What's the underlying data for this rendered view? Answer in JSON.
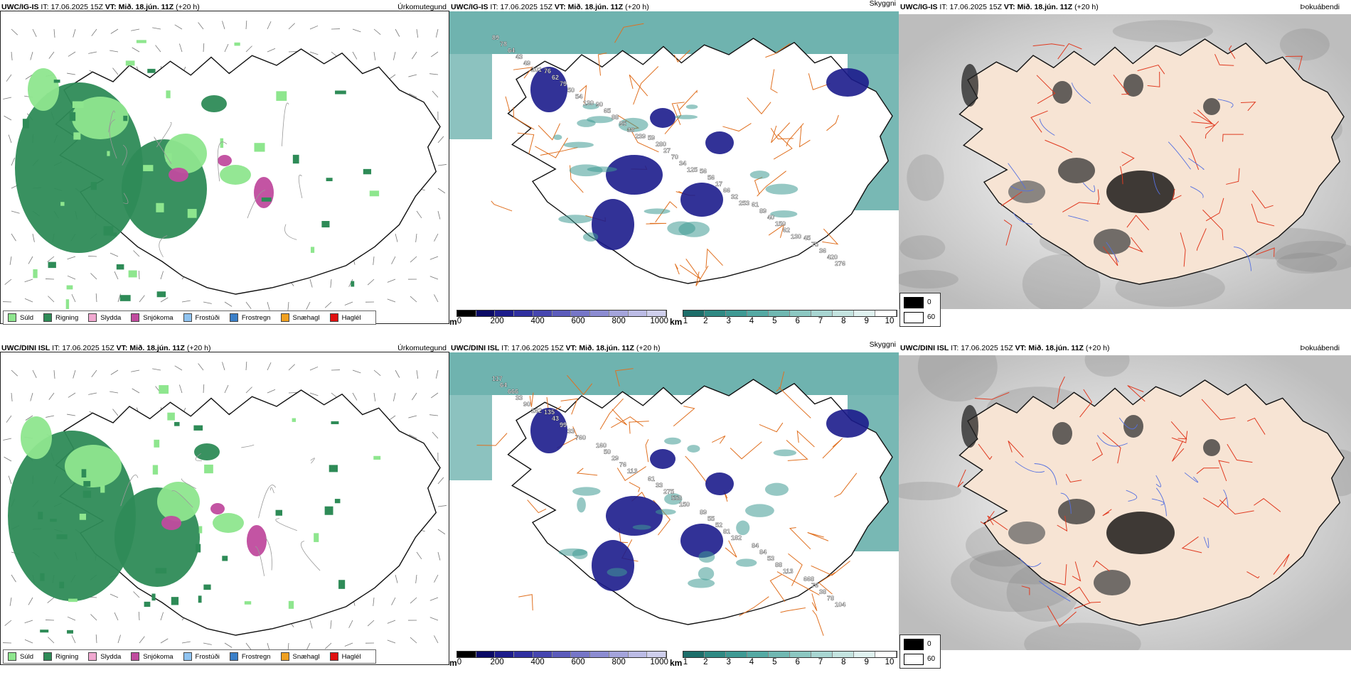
{
  "page": {
    "background": "#ffffff"
  },
  "common": {
    "it_label": "IT:",
    "it_value": "17.06.2025 15Z",
    "vt_label": "VT:",
    "vt_value": "Mið. 18.jún. 11Z",
    "lead": "(+20 h)"
  },
  "rows": [
    {
      "model": "UWC/IG-IS",
      "panels": [
        {
          "type": "precipitation",
          "title": "Úrkomutegund"
        },
        {
          "type": "cloud_ceiling",
          "title": "Skyggni",
          "labels": [
            "89",
            "76",
            "90",
            "59",
            "56",
            "61",
            "45",
            "78",
            "62",
            "65",
            "280",
            "56",
            "89",
            "75",
            "64",
            "79",
            "88",
            "27",
            "17",
            "40",
            "36",
            "43",
            "50",
            "95",
            "70",
            "66",
            "150",
            "420",
            "49",
            "54",
            "38",
            "34",
            "32",
            "62",
            "276",
            "201",
            "130",
            "239",
            "125",
            "253",
            "130"
          ]
        },
        {
          "type": "fog",
          "title": "Þokuábendi"
        }
      ]
    },
    {
      "model": "UWC/DINI ISL",
      "panels": [
        {
          "type": "precipitation",
          "title": "Úrkomutegund"
        },
        {
          "type": "cloud_ceiling",
          "title": "Skyggni",
          "labels": [
            "117",
            "135",
            "160",
            "61",
            "89",
            "84",
            "668",
            "64",
            "43",
            "50",
            "33",
            "55",
            "84",
            "76",
            "666",
            "99",
            "29",
            "275",
            "52",
            "53",
            "38",
            "33",
            "33",
            "76",
            "558",
            "81",
            "88",
            "78",
            "90",
            "760",
            "113",
            "150",
            "182",
            "113",
            "104",
            "162"
          ]
        },
        {
          "type": "fog",
          "title": "Þokuábendi"
        }
      ]
    }
  ],
  "precip_legend": [
    {
      "label": "Súld",
      "color": "#8ee68e"
    },
    {
      "label": "Rigning",
      "color": "#2e8b57"
    },
    {
      "label": "Slydda",
      "color": "#f0a8d0"
    },
    {
      "label": "Snjókoma",
      "color": "#c04b9e"
    },
    {
      "label": "Frostúði",
      "color": "#8fc3f0"
    },
    {
      "label": "Frostregn",
      "color": "#3a7fc8"
    },
    {
      "label": "Snæhagl",
      "color": "#f0a020"
    },
    {
      "label": "Haglél",
      "color": "#e01010"
    }
  ],
  "ceiling_bar": {
    "unit": "m",
    "ticks": [
      "0",
      "200",
      "400",
      "600",
      "800",
      "1000"
    ],
    "colors": [
      "#000000",
      "#0a0a66",
      "#1c1c8c",
      "#3030a0",
      "#4646b0",
      "#5c5cbc",
      "#7676c8",
      "#8c8cd2",
      "#a4a4dc",
      "#bcbce6",
      "#d0d0ee"
    ]
  },
  "visibility_bar": {
    "unit": "km",
    "ticks": [
      "1",
      "2",
      "3",
      "4",
      "5",
      "6",
      "7",
      "8",
      "9",
      "10"
    ],
    "colors": [
      "#1d6e6a",
      "#2f8a84",
      "#3f9a94",
      "#55aaa4",
      "#70b8b2",
      "#8cc8c2",
      "#a8d6d2",
      "#c4e4e0",
      "#e0f2f0",
      "#ffffff"
    ]
  },
  "fog_scale": {
    "items": [
      {
        "value": "0",
        "color": "#000000"
      },
      {
        "value": "60",
        "color": "#ffffff"
      }
    ]
  },
  "colors": {
    "land": "#f7e4d4",
    "coast": "#111111",
    "roads": "#e07020",
    "roads_fog": "#e03a20",
    "rivers": "#5570e0",
    "sea_vis": "#3f9a94",
    "ceiling": "#1c1c8c"
  }
}
